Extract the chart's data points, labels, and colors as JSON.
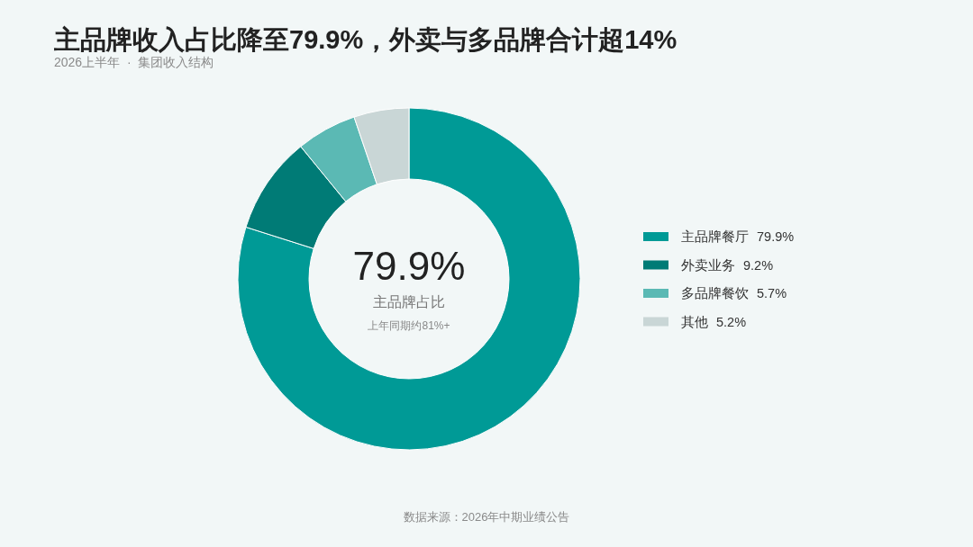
{
  "chart_data": {
    "type": "donut",
    "title": "主品牌收入占比降至79.9%，外卖与多品牌合计超14%",
    "subtitle": "2026上半年  ·  集团收入结构",
    "categories": [
      "主品牌餐厅",
      "外卖业务",
      "多品牌餐饮",
      "其他"
    ],
    "values": [
      79.9,
      9.2,
      5.7,
      5.2
    ],
    "value_labels": [
      "79.9%",
      "9.2%",
      "5.7%",
      "5.2%"
    ],
    "colors": [
      "#009a96",
      "#007b76",
      "#5bb9b4",
      "#c9d6d6"
    ],
    "legend": "right",
    "annotations": [
      "79.9%",
      "主品牌占比",
      "上年同期约81%+",
      "数据来源：2026年中期业绩公告"
    ]
  }
}
